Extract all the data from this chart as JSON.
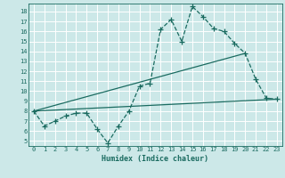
{
  "title": "",
  "xlabel": "Humidex (Indice chaleur)",
  "bg_color": "#cce8e8",
  "line_color": "#1a6b60",
  "grid_color": "#b0d8d8",
  "xlim": [
    -0.5,
    23.5
  ],
  "ylim": [
    4.5,
    18.8
  ],
  "xticks": [
    0,
    1,
    2,
    3,
    4,
    5,
    6,
    7,
    8,
    9,
    10,
    11,
    12,
    13,
    14,
    15,
    16,
    17,
    18,
    19,
    20,
    21,
    22,
    23
  ],
  "yticks": [
    5,
    6,
    7,
    8,
    9,
    10,
    11,
    12,
    13,
    14,
    15,
    16,
    17,
    18
  ],
  "curve1_x": [
    0,
    1,
    2,
    3,
    4,
    5,
    6,
    7,
    8,
    9,
    10,
    11,
    12,
    13,
    14,
    15,
    16,
    17,
    18,
    19,
    20,
    21,
    22,
    23
  ],
  "curve1_y": [
    8.0,
    6.5,
    7.0,
    7.5,
    7.8,
    7.8,
    6.2,
    4.8,
    6.5,
    8.0,
    10.5,
    10.8,
    16.2,
    17.2,
    15.0,
    18.5,
    17.5,
    16.3,
    16.0,
    14.8,
    13.8,
    11.2,
    9.3,
    9.2
  ],
  "curve2_x": [
    0,
    23
  ],
  "curve2_y": [
    8.0,
    9.2
  ],
  "curve3_x": [
    0,
    20
  ],
  "curve3_y": [
    8.0,
    13.8
  ],
  "markersize": 2.5,
  "linewidth": 0.9,
  "tick_fontsize": 5.0,
  "xlabel_fontsize": 6.0
}
